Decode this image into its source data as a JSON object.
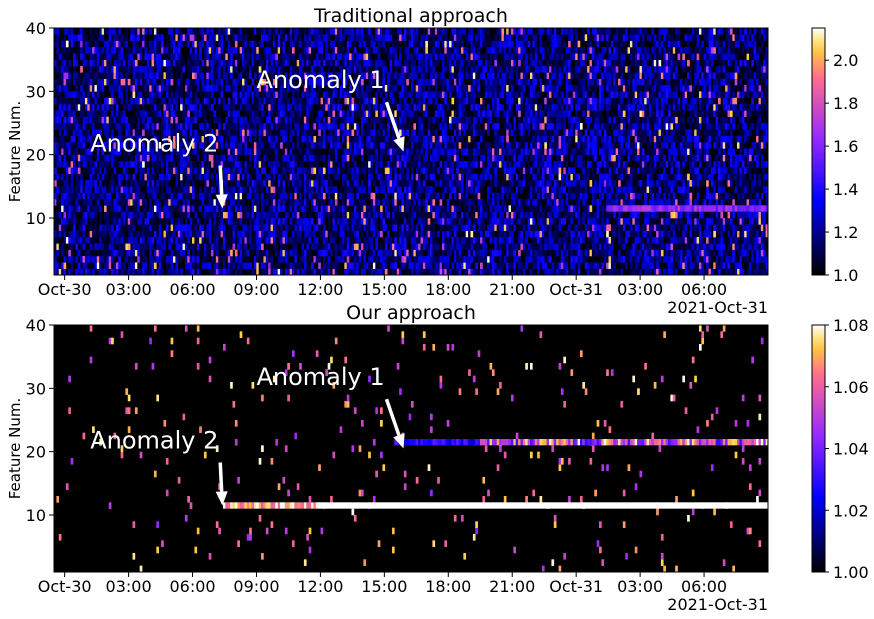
{
  "chart_data": [
    {
      "type": "heatmap",
      "title": "Traditional approach",
      "ylabel": "Feature Num.",
      "ylim": [
        1,
        40
      ],
      "yticks": [
        10,
        20,
        30,
        40
      ],
      "xlim_hours": [
        -0.5,
        33
      ],
      "xticks": [
        "Oct-30",
        "03:00",
        "06:00",
        "09:00",
        "12:00",
        "15:00",
        "18:00",
        "21:00",
        "Oct-31",
        "03:00",
        "06:00"
      ],
      "x_offset_label": "2021-Oct-31",
      "colorbar": {
        "min": 1.0,
        "max": 2.15,
        "ticks": [
          "1.0",
          "1.2",
          "1.4",
          "1.6",
          "1.8",
          "2.0"
        ],
        "colormap": "gnuplot2"
      },
      "background_level": 1.0,
      "noise_level": 1.35,
      "noise_variation": 0.8,
      "sparkle_density": 0.05,
      "highlight_rows": [
        {
          "feature": 11,
          "from_hours": 25.5,
          "to_hours": 33,
          "value": 1.62,
          "jitter": 0.12
        }
      ],
      "annotations": [
        {
          "text": "Anomaly 1",
          "point_hours": 15.9,
          "point_feature": 20.5,
          "text_hours": 9.0,
          "text_feature": 30.5
        },
        {
          "text": "Anomaly 2",
          "point_hours": 7.4,
          "point_feature": 11.5,
          "text_hours": 1.2,
          "text_feature": 20.5
        }
      ]
    },
    {
      "type": "heatmap",
      "title": "Our approach",
      "ylabel": "Feature Num.",
      "ylim": [
        1,
        40
      ],
      "yticks": [
        10,
        20,
        30,
        40
      ],
      "xlim_hours": [
        -0.5,
        33
      ],
      "xticks": [
        "Oct-30",
        "03:00",
        "06:00",
        "09:00",
        "12:00",
        "15:00",
        "18:00",
        "21:00",
        "Oct-31",
        "03:00",
        "06:00"
      ],
      "x_offset_label": "2021-Oct-31",
      "colorbar": {
        "min": 1.0,
        "max": 1.08,
        "ticks": [
          "1.00",
          "1.02",
          "1.04",
          "1.06",
          "1.08"
        ],
        "colormap": "gnuplot2"
      },
      "background_level": 1.0,
      "noise_level": 1.008,
      "noise_variation": 0.02,
      "sparkle_density": 0.025,
      "highlight_rows": [
        {
          "feature": 11,
          "from_hours": 7.5,
          "to_hours": 12.0,
          "value": 1.07,
          "jitter": 0.012
        },
        {
          "feature": 11,
          "from_hours": 12.0,
          "to_hours": 33,
          "value": 1.08,
          "jitter": 0.0
        },
        {
          "feature": 21,
          "from_hours": 15.5,
          "to_hours": 19.5,
          "value": 1.028,
          "jitter": 0.01
        },
        {
          "feature": 21,
          "from_hours": 19.5,
          "to_hours": 33,
          "value": 1.055,
          "jitter": 0.025
        }
      ],
      "annotations": [
        {
          "text": "Anomaly 1",
          "point_hours": 15.9,
          "point_feature": 20.5,
          "text_hours": 9.0,
          "text_feature": 30.5
        },
        {
          "text": "Anomaly 2",
          "point_hours": 7.4,
          "point_feature": 11.5,
          "text_hours": 1.2,
          "text_feature": 20.5
        }
      ]
    }
  ]
}
